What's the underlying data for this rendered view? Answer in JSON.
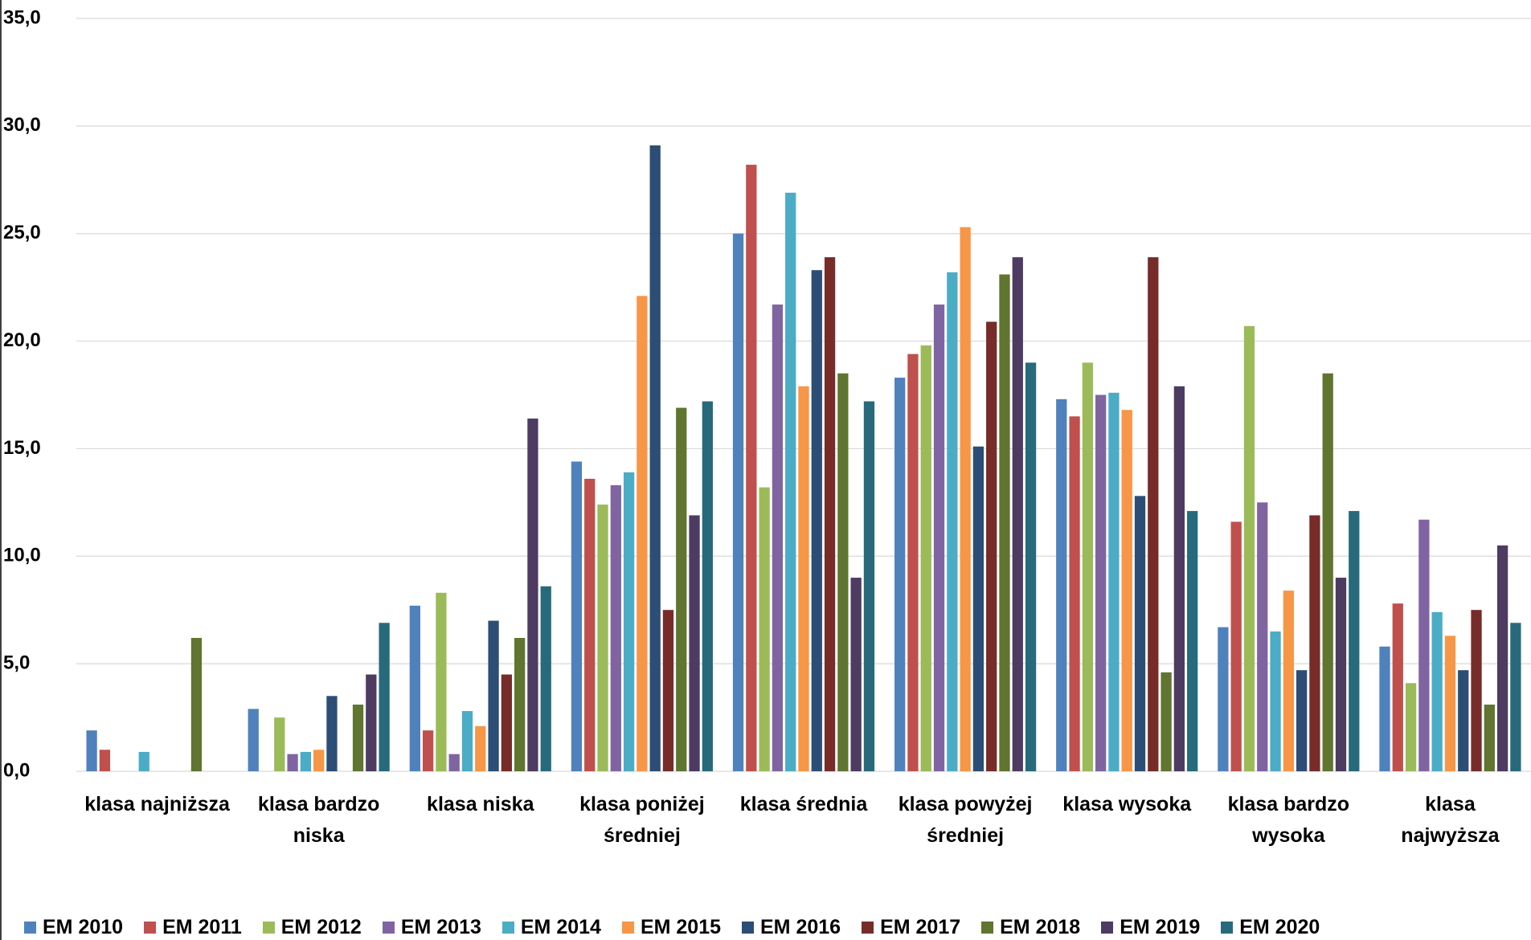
{
  "chart_data": {
    "type": "bar",
    "categories": [
      "klasa najniższa",
      "klasa bardzo\nniska",
      "klasa niska",
      "klasa poniżej\nśredniej",
      "klasa średnia",
      "klasa powyżej\nśredniej",
      "klasa wysoka",
      "klasa bardzo\nwysoka",
      "klasa\nnajwyższa"
    ],
    "series": [
      {
        "name": "EM 2010",
        "color": "#4f81bd",
        "values": [
          1.9,
          2.9,
          7.7,
          14.4,
          25.0,
          18.3,
          17.3,
          6.7,
          5.8
        ]
      },
      {
        "name": "EM 2011",
        "color": "#c0504d",
        "values": [
          1.0,
          0,
          1.9,
          13.6,
          28.2,
          19.4,
          16.5,
          11.6,
          7.8
        ]
      },
      {
        "name": "EM 2012",
        "color": "#9bbb59",
        "values": [
          0,
          2.5,
          8.3,
          12.4,
          13.2,
          19.8,
          19.0,
          20.7,
          4.1
        ]
      },
      {
        "name": "EM 2013",
        "color": "#8064a2",
        "values": [
          0,
          0.8,
          0.8,
          13.3,
          21.7,
          21.7,
          17.5,
          12.5,
          11.7
        ]
      },
      {
        "name": "EM 2014",
        "color": "#4bacc6",
        "values": [
          0.9,
          0.9,
          2.8,
          13.9,
          26.9,
          23.2,
          17.6,
          6.5,
          7.4
        ]
      },
      {
        "name": "EM 2015",
        "color": "#f79646",
        "values": [
          0,
          1.0,
          2.1,
          22.1,
          17.9,
          25.3,
          16.8,
          8.4,
          6.3
        ]
      },
      {
        "name": "EM 2016",
        "color": "#2c4d75",
        "values": [
          0,
          3.5,
          7.0,
          29.1,
          23.3,
          15.1,
          12.8,
          4.7,
          4.7
        ]
      },
      {
        "name": "EM 2017",
        "color": "#772c2a",
        "values": [
          0,
          0,
          4.5,
          7.5,
          23.9,
          20.9,
          23.9,
          11.9,
          7.5
        ]
      },
      {
        "name": "EM 2018",
        "color": "#5f7530",
        "values": [
          6.2,
          3.1,
          6.2,
          16.9,
          18.5,
          23.1,
          4.6,
          18.5,
          3.1
        ]
      },
      {
        "name": "EM 2019",
        "color": "#4d3b62",
        "values": [
          0,
          4.5,
          16.4,
          11.9,
          9.0,
          23.9,
          17.9,
          9.0,
          10.5
        ]
      },
      {
        "name": "EM 2020",
        "color": "#276a7c",
        "values": [
          0,
          6.9,
          8.6,
          17.2,
          17.2,
          19.0,
          12.1,
          12.1,
          6.9
        ]
      }
    ],
    "ylim": [
      0,
      35
    ],
    "yticks": [
      {
        "value": 0,
        "label": "0,0"
      },
      {
        "value": 5,
        "label": "5,0"
      },
      {
        "value": 10,
        "label": "10,0"
      },
      {
        "value": 15,
        "label": "15,0"
      },
      {
        "value": 20,
        "label": "20,0"
      },
      {
        "value": 25,
        "label": "25,0"
      },
      {
        "value": 30,
        "label": "30,0"
      },
      {
        "value": 35,
        "label": "35,0"
      }
    ],
    "grid": true
  }
}
